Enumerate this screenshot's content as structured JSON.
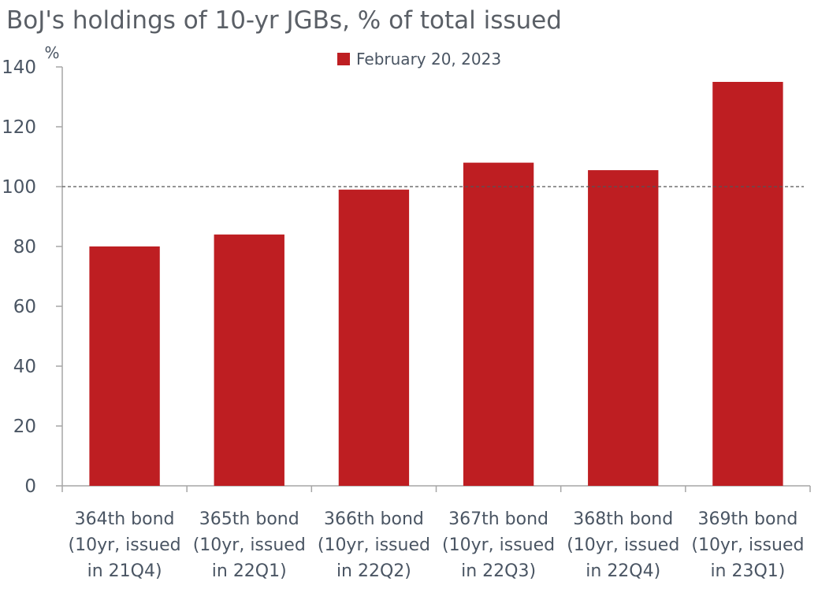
{
  "chart_data": {
    "type": "bar",
    "title": "BoJ's holdings of 10-yr JGBs, % of total issued",
    "ylabel": "%",
    "xlabel": "",
    "ylim": [
      0,
      140
    ],
    "yticks": [
      0,
      20,
      40,
      60,
      80,
      100,
      120,
      140
    ],
    "reference_line": 100,
    "legend_position": "top-center",
    "categories": [
      [
        "364th bond",
        "(10yr, issued",
        "in 21Q4)"
      ],
      [
        "365th bond",
        "(10yr, issued",
        "in 22Q1)"
      ],
      [
        "366th bond",
        "(10yr, issued",
        "in 22Q2)"
      ],
      [
        "367th bond",
        "(10yr, issued",
        "in 22Q3)"
      ],
      [
        "368th bond",
        "(10yr, issued",
        "in 22Q4)"
      ],
      [
        "369th bond",
        "(10yr, issued",
        "in 23Q1)"
      ]
    ],
    "series": [
      {
        "name": "February 20, 2023",
        "color": "#be1e22",
        "values": [
          80,
          84,
          99,
          108,
          105.5,
          135
        ]
      }
    ]
  }
}
